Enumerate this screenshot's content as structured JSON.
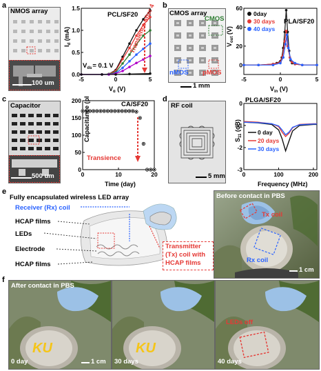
{
  "panel_labels": {
    "a": "a",
    "b": "b",
    "c": "c",
    "d": "d",
    "e": "e",
    "f": "f"
  },
  "panel_a": {
    "photo_title": "NMOS array",
    "scale_text": "100 um",
    "chart_title": "PCL/SF20",
    "annotation": "Transience after 4 days",
    "vds_label": "V",
    "vds_sub": "ds",
    "vds_value": "= 0.1 V"
  },
  "panel_b": {
    "photo_title": "CMOS array",
    "cmos_label": "CMOS",
    "nmos_label": "nMOS",
    "pmos_label": "pMOS",
    "scale_text": "1 mm",
    "chart_title": "PLA/SF20"
  },
  "panel_c": {
    "photo_title": "Capacitor",
    "scale_text": "500 um",
    "chart_title": "CA/SF20",
    "annotation": "Transience"
  },
  "panel_d": {
    "photo_title": "RF coil",
    "scale_text": "5 mm",
    "chart_title": "PLGA/SF20"
  },
  "panel_e": {
    "title": "Fully encapsulated wireless LED array",
    "receiver": "Receiver (Rx) coil",
    "hcap_top": "HCAP films",
    "leds": "LEDs",
    "electrode": "Electrode",
    "hcap_bottom": "HCAP films",
    "transmitter_l1": "Transmitter",
    "transmitter_l2": "(Tx) coil with",
    "transmitter_l3": "HCAP films",
    "photo_title": "Before contact in PBS",
    "tx_coil": "Tx coil",
    "rx_coil": "Rx coil",
    "scale_text": "1 cm"
  },
  "panel_f": {
    "title": "After contact in PBS",
    "day0": "0 day",
    "day30": "30 days",
    "day40": "40 days",
    "leds_off": "LEDs off",
    "scale_text": "1 cm"
  },
  "chart_data": [
    {
      "id": "a",
      "type": "line",
      "title": "PCL/SF20",
      "xlabel": "Vg (V)",
      "ylabel": "Id (mA)",
      "xlim": [
        -5,
        5
      ],
      "ylim": [
        0,
        1.5
      ],
      "xticks": [
        -5,
        0,
        5
      ],
      "yticks": [
        0.0,
        0.5,
        1.0,
        1.5
      ],
      "ytick_labels": [
        "0.0",
        "0.5",
        "1.0",
        "1.5"
      ],
      "annotation": "Transience after 4 days",
      "series": [
        {
          "color": "#111111",
          "x": [
            -5,
            -2,
            -1,
            0,
            1,
            2,
            3,
            4,
            5
          ],
          "y": [
            0,
            0,
            0.01,
            0.1,
            0.4,
            0.7,
            1.0,
            1.25,
            1.45
          ]
        },
        {
          "color": "#e53935",
          "x": [
            -5,
            -2,
            -1,
            0,
            1,
            2,
            3,
            4,
            5
          ],
          "y": [
            0,
            0,
            0.01,
            0.08,
            0.35,
            0.6,
            0.88,
            1.12,
            1.3
          ]
        },
        {
          "color": "#2e7d32",
          "x": [
            -5,
            -2,
            -1,
            0,
            1,
            2,
            3,
            4,
            5
          ],
          "y": [
            0,
            0,
            0.01,
            0.05,
            0.25,
            0.45,
            0.68,
            0.88,
            1.0
          ]
        },
        {
          "color": "#2962ff",
          "x": [
            -5,
            -2,
            -1,
            0,
            1,
            2,
            3,
            4,
            5
          ],
          "y": [
            0,
            0,
            0.0,
            0.03,
            0.15,
            0.3,
            0.45,
            0.58,
            0.7
          ]
        },
        {
          "color": "#b000c8",
          "x": [
            -5,
            -2,
            -1,
            0,
            1,
            2,
            3,
            4,
            5
          ],
          "y": [
            0,
            0,
            0.0,
            0.02,
            0.08,
            0.17,
            0.26,
            0.34,
            0.42
          ]
        },
        {
          "color": "#111111",
          "x": [
            -5,
            -2,
            0,
            2,
            5
          ],
          "y": [
            0,
            0,
            0.0,
            0.01,
            0.02
          ]
        }
      ]
    },
    {
      "id": "b",
      "type": "line",
      "title": "PLA/SF20",
      "xlabel": "Vin (V)",
      "ylabel": "Vout (V)",
      "xlim": [
        -5,
        5
      ],
      "ylim": [
        -10,
        60
      ],
      "xticks": [
        -5,
        0,
        5
      ],
      "yticks": [
        0,
        20,
        40,
        60
      ],
      "legend": [
        "0day",
        "30 days",
        "40 days"
      ],
      "series": [
        {
          "name": "0day",
          "color": "#111111",
          "x": [
            -5,
            -3,
            -1,
            -0.5,
            0,
            0.2,
            0.4,
            0.6,
            0.8,
            1.0,
            1.2,
            1.4,
            1.6,
            2,
            3,
            5
          ],
          "y": [
            0,
            0,
            1,
            2,
            4,
            8,
            18,
            35,
            58,
            35,
            15,
            5,
            2,
            1,
            0,
            0
          ]
        },
        {
          "name": "30 days",
          "color": "#e53935",
          "x": [
            -5,
            -3,
            -1,
            0,
            0.3,
            0.6,
            0.8,
            1.0,
            1.3,
            1.6,
            2,
            3,
            5
          ],
          "y": [
            0,
            0,
            1,
            3,
            9,
            25,
            36,
            20,
            8,
            3,
            1,
            0,
            0
          ]
        },
        {
          "name": "40 days",
          "color": "#2962ff",
          "x": [
            -5,
            -3,
            -1,
            0,
            0.4,
            0.7,
            0.9,
            1.1,
            1.4,
            2,
            3,
            5
          ],
          "y": [
            0,
            0,
            0,
            2,
            8,
            22,
            32,
            18,
            6,
            2,
            0,
            0
          ]
        }
      ]
    },
    {
      "id": "c",
      "type": "scatter",
      "title": "CA/SF20",
      "xlabel": "Time (day)",
      "ylabel": "Capacitance (pF)",
      "xlim": [
        0,
        20
      ],
      "ylim": [
        0,
        200
      ],
      "xticks": [
        0,
        10,
        20
      ],
      "yticks": [
        0,
        50,
        100,
        150,
        200
      ],
      "annotation": "Transience",
      "x": [
        0,
        1,
        2,
        3,
        4,
        5,
        6,
        7,
        8,
        9,
        10,
        11,
        12,
        13,
        14,
        15,
        16,
        17,
        18,
        19,
        20
      ],
      "y": [
        170,
        170,
        170,
        170,
        170,
        170,
        170,
        170,
        170,
        170,
        170,
        170,
        170,
        170,
        170,
        168,
        150,
        75,
        0,
        0,
        0
      ]
    },
    {
      "id": "d",
      "type": "line",
      "title": "PLGA/SF20",
      "xlabel": "Frequency (MHz)",
      "ylabel": "S11 (dB)",
      "xlim": [
        0,
        210
      ],
      "ylim": [
        -3,
        0
      ],
      "xticks": [
        0,
        100,
        200
      ],
      "yticks": [
        -3,
        -2,
        -1,
        0
      ],
      "legend": [
        "0 day",
        "20 days",
        "30 days"
      ],
      "series": [
        {
          "name": "0 day",
          "color": "#111111",
          "x": [
            0,
            40,
            80,
            100,
            110,
            120,
            130,
            140,
            160,
            200,
            210
          ],
          "y": [
            -0.85,
            -0.88,
            -0.95,
            -1.2,
            -1.6,
            -2.15,
            -1.7,
            -1.25,
            -1.0,
            -0.95,
            -0.95
          ]
        },
        {
          "name": "20 days",
          "color": "#e53935",
          "x": [
            0,
            40,
            80,
            100,
            110,
            120,
            130,
            140,
            160,
            200,
            210
          ],
          "y": [
            -0.82,
            -0.85,
            -0.92,
            -1.05,
            -1.3,
            -1.5,
            -1.35,
            -1.1,
            -0.95,
            -0.92,
            -0.92
          ]
        },
        {
          "name": "30 days",
          "color": "#2962ff",
          "x": [
            0,
            40,
            80,
            100,
            110,
            120,
            130,
            140,
            160,
            200,
            210
          ],
          "y": [
            -0.85,
            -0.87,
            -0.92,
            -1.02,
            -1.2,
            -1.42,
            -1.3,
            -1.08,
            -0.97,
            -0.93,
            -0.93
          ]
        }
      ]
    }
  ]
}
